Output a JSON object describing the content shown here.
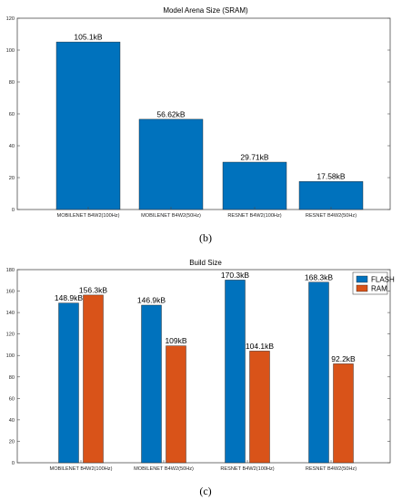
{
  "colors": {
    "flash": "#0072BD",
    "ram": "#D95319",
    "axis": "#4d4d4d"
  },
  "panels": [
    "(b)",
    "(c)"
  ],
  "chart_data": [
    {
      "type": "bar",
      "title": "Model Arena Size (SRAM)",
      "categories": [
        "MOBILENET B4W2(100Hz)",
        "MOBILENET B4W2(50Hz)",
        "RESNET B4W2(100Hz)",
        "RESNET B4W2(50Hz)"
      ],
      "series": [
        {
          "values": [
            105.1,
            56.62,
            29.71,
            17.58
          ],
          "labels": [
            "105.1kB",
            "56.62kB",
            "29.71kB",
            "17.58kB"
          ]
        }
      ],
      "ylim": [
        0,
        120
      ],
      "yticks": [
        0,
        20,
        40,
        60,
        80,
        100,
        120
      ],
      "xlabel": "",
      "ylabel": "",
      "grid": false
    },
    {
      "type": "bar",
      "title": "Build Size",
      "categories": [
        "MOBILENET B4W2(100Hz)",
        "MOBILENET B4W2(50Hz)",
        "RESNET B4W2(100Hz)",
        "RESNET B4W2(50Hz)"
      ],
      "series": [
        {
          "name": "FLASH",
          "values": [
            148.9,
            146.9,
            170.3,
            168.3
          ],
          "labels": [
            "148.9kB",
            "146.9kB",
            "170.3kB",
            "168.3kB"
          ]
        },
        {
          "name": "RAM",
          "values": [
            156.3,
            109,
            104.1,
            92.2
          ],
          "labels": [
            "156.3kB",
            "109kB",
            "104.1kB",
            "92.2kB"
          ]
        }
      ],
      "ylim": [
        0,
        180
      ],
      "yticks": [
        0,
        20,
        40,
        60,
        80,
        100,
        120,
        140,
        160,
        180
      ],
      "legend": "top-right",
      "xlabel": "",
      "ylabel": "",
      "grid": false
    }
  ]
}
